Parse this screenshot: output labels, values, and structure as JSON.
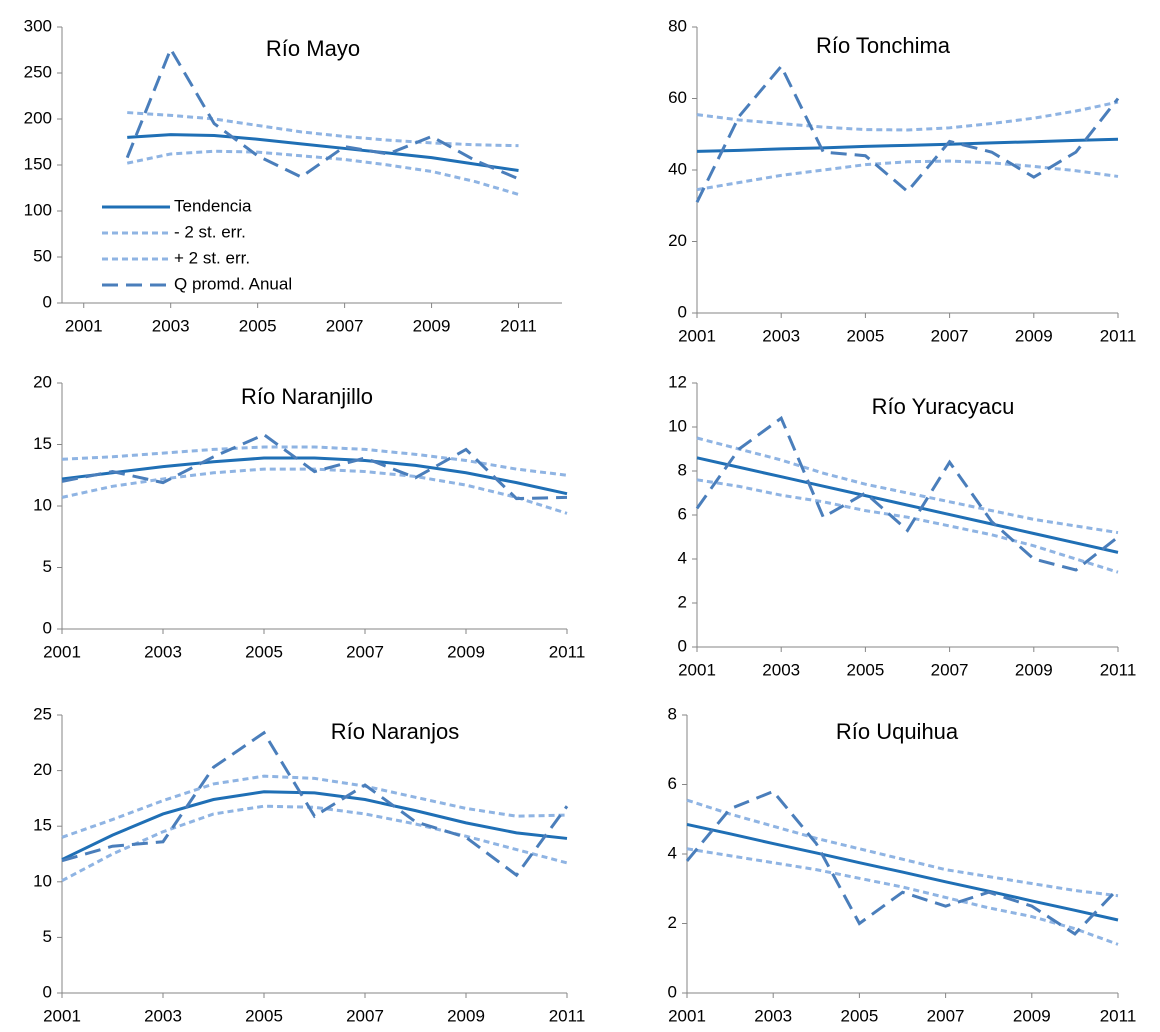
{
  "chart_data": [
    {
      "type": "line",
      "title": "Río Mayo",
      "x": [
        2002,
        2003,
        2004,
        2005,
        2006,
        2007,
        2008,
        2009,
        2010,
        2011
      ],
      "xlim": [
        2000.5,
        2012
      ],
      "xticks": [
        2001,
        2003,
        2005,
        2007,
        2009,
        2011
      ],
      "ylim": [
        0,
        300
      ],
      "yticks": [
        0,
        50,
        100,
        150,
        200,
        250,
        300
      ],
      "legend": "lower-left",
      "series": [
        {
          "name": "Tendencia",
          "color": "#1f6fb5",
          "dash": "solid",
          "values": [
            180,
            183,
            182,
            178,
            173,
            168,
            163,
            158,
            151,
            144
          ]
        },
        {
          "name": "- 2 st. err.",
          "color": "#8fb4e3",
          "dash": "short",
          "values": [
            152,
            162,
            165,
            164,
            160,
            156,
            150,
            143,
            132,
            118
          ]
        },
        {
          "name": "+ 2 st. err.",
          "color": "#8fb4e3",
          "dash": "short",
          "values": [
            207,
            204,
            200,
            193,
            186,
            181,
            177,
            174,
            172,
            171
          ]
        },
        {
          "name": "Q promd. Anual",
          "color": "#4a7ebb",
          "dash": "long",
          "values": [
            158,
            276,
            195,
            160,
            137,
            170,
            162,
            181,
            155,
            135
          ]
        }
      ]
    },
    {
      "type": "line",
      "title": "Río Tonchima",
      "x": [
        2001,
        2002,
        2003,
        2004,
        2005,
        2006,
        2007,
        2008,
        2009,
        2010,
        2011
      ],
      "xlim": [
        2001,
        2011
      ],
      "xticks": [
        2001,
        2003,
        2005,
        2007,
        2009,
        2011
      ],
      "ylim": [
        0,
        80
      ],
      "yticks": [
        0,
        20,
        40,
        60,
        80
      ],
      "series": [
        {
          "color": "#1f6fb5",
          "dash": "solid",
          "values": [
            45.2,
            45.5,
            45.9,
            46.2,
            46.6,
            46.9,
            47.2,
            47.6,
            47.9,
            48.3,
            48.6
          ]
        },
        {
          "color": "#8fb4e3",
          "dash": "short",
          "values": [
            34.5,
            36.5,
            38.5,
            40,
            41.5,
            42.3,
            42.5,
            42,
            41,
            39.8,
            38.2
          ]
        },
        {
          "color": "#8fb4e3",
          "dash": "short",
          "values": [
            55.5,
            54,
            53,
            52,
            51.3,
            51.2,
            51.8,
            53,
            54.5,
            56.5,
            59
          ]
        },
        {
          "color": "#4a7ebb",
          "dash": "long",
          "values": [
            31,
            55,
            69,
            45,
            44,
            34,
            48,
            45,
            38,
            45,
            60
          ]
        }
      ]
    },
    {
      "type": "line",
      "title": "Río Naranjillo",
      "x": [
        2001,
        2002,
        2003,
        2004,
        2005,
        2006,
        2007,
        2008,
        2009,
        2010,
        2011
      ],
      "xlim": [
        2001,
        2011
      ],
      "xticks": [
        2001,
        2003,
        2005,
        2007,
        2009,
        2011
      ],
      "ylim": [
        0,
        20
      ],
      "yticks": [
        0,
        5,
        10,
        15,
        20
      ],
      "series": [
        {
          "color": "#1f6fb5",
          "dash": "solid",
          "values": [
            12.2,
            12.7,
            13.2,
            13.6,
            13.9,
            13.9,
            13.7,
            13.3,
            12.7,
            11.9,
            11.0
          ]
        },
        {
          "color": "#8fb4e3",
          "dash": "short",
          "values": [
            10.7,
            11.6,
            12.2,
            12.7,
            13.0,
            13.0,
            12.8,
            12.4,
            11.7,
            10.7,
            9.4
          ]
        },
        {
          "color": "#8fb4e3",
          "dash": "short",
          "values": [
            13.8,
            14.0,
            14.3,
            14.6,
            14.8,
            14.8,
            14.6,
            14.2,
            13.7,
            13.0,
            12.5
          ]
        },
        {
          "color": "#4a7ebb",
          "dash": "long",
          "values": [
            12.0,
            12.8,
            11.9,
            14.0,
            15.8,
            12.8,
            13.9,
            12.3,
            14.6,
            10.6,
            10.7
          ]
        }
      ]
    },
    {
      "type": "line",
      "title": "Río Yuracyacu",
      "x": [
        2001,
        2002,
        2003,
        2004,
        2005,
        2006,
        2007,
        2008,
        2009,
        2010,
        2011
      ],
      "xlim": [
        2001,
        2011
      ],
      "xticks": [
        2001,
        2003,
        2005,
        2007,
        2009,
        2011
      ],
      "ylim": [
        0,
        12
      ],
      "yticks": [
        0,
        2,
        4,
        6,
        8,
        10,
        12
      ],
      "series": [
        {
          "color": "#1f6fb5",
          "dash": "solid",
          "values": [
            8.6,
            8.17,
            7.74,
            7.31,
            6.88,
            6.45,
            6.02,
            5.59,
            5.16,
            4.73,
            4.3
          ]
        },
        {
          "color": "#8fb4e3",
          "dash": "short",
          "values": [
            7.6,
            7.3,
            6.9,
            6.6,
            6.2,
            5.9,
            5.5,
            5.1,
            4.6,
            4.0,
            3.4
          ]
        },
        {
          "color": "#8fb4e3",
          "dash": "short",
          "values": [
            9.5,
            9.0,
            8.5,
            7.9,
            7.4,
            7.0,
            6.6,
            6.2,
            5.8,
            5.5,
            5.2
          ]
        },
        {
          "color": "#4a7ebb",
          "dash": "long",
          "values": [
            6.3,
            9.0,
            10.4,
            5.9,
            7.0,
            5.3,
            8.4,
            5.7,
            4.0,
            3.5,
            5.0
          ]
        }
      ]
    },
    {
      "type": "line",
      "title": "Río Naranjos",
      "x": [
        2001,
        2002,
        2003,
        2004,
        2005,
        2006,
        2007,
        2008,
        2009,
        2010,
        2011
      ],
      "xlim": [
        2001,
        2011
      ],
      "xticks": [
        2001,
        2003,
        2005,
        2007,
        2009,
        2011
      ],
      "ylim": [
        0,
        25
      ],
      "yticks": [
        0,
        5,
        10,
        15,
        20,
        25
      ],
      "series": [
        {
          "color": "#1f6fb5",
          "dash": "solid",
          "values": [
            12.0,
            14.2,
            16.1,
            17.4,
            18.1,
            18.0,
            17.4,
            16.4,
            15.3,
            14.4,
            13.9
          ]
        },
        {
          "color": "#8fb4e3",
          "dash": "short",
          "values": [
            10.1,
            12.5,
            14.5,
            16.1,
            16.8,
            16.7,
            16.1,
            15.2,
            14.1,
            12.9,
            11.7
          ]
        },
        {
          "color": "#8fb4e3",
          "dash": "short",
          "values": [
            14.0,
            15.6,
            17.3,
            18.8,
            19.5,
            19.3,
            18.6,
            17.6,
            16.6,
            15.9,
            16.0
          ]
        },
        {
          "color": "#4a7ebb",
          "dash": "long",
          "values": [
            11.9,
            13.2,
            13.6,
            20.3,
            23.4,
            15.9,
            18.7,
            15.4,
            14.0,
            10.6,
            16.8
          ]
        }
      ]
    },
    {
      "type": "line",
      "title": "Río Uquihua",
      "x": [
        2001,
        2002,
        2003,
        2004,
        2005,
        2006,
        2007,
        2008,
        2009,
        2010,
        2011
      ],
      "xlim": [
        2001,
        2011
      ],
      "xticks": [
        2001,
        2003,
        2005,
        2007,
        2009,
        2011
      ],
      "ylim": [
        0,
        8
      ],
      "yticks": [
        0,
        2,
        4,
        6,
        8
      ],
      "series": [
        {
          "color": "#1f6fb5",
          "dash": "solid",
          "values": [
            4.85,
            4.58,
            4.3,
            4.03,
            3.75,
            3.48,
            3.2,
            2.93,
            2.65,
            2.38,
            2.1
          ]
        },
        {
          "color": "#8fb4e3",
          "dash": "short",
          "values": [
            4.15,
            3.95,
            3.75,
            3.55,
            3.3,
            3.05,
            2.75,
            2.45,
            2.2,
            1.85,
            1.4
          ]
        },
        {
          "color": "#8fb4e3",
          "dash": "short",
          "values": [
            5.55,
            5.15,
            4.8,
            4.45,
            4.15,
            3.85,
            3.55,
            3.35,
            3.15,
            2.95,
            2.8
          ]
        },
        {
          "color": "#4a7ebb",
          "dash": "long",
          "values": [
            3.8,
            5.3,
            5.8,
            4.3,
            2.0,
            2.9,
            2.5,
            2.9,
            2.5,
            1.7,
            3.0
          ]
        }
      ]
    }
  ]
}
